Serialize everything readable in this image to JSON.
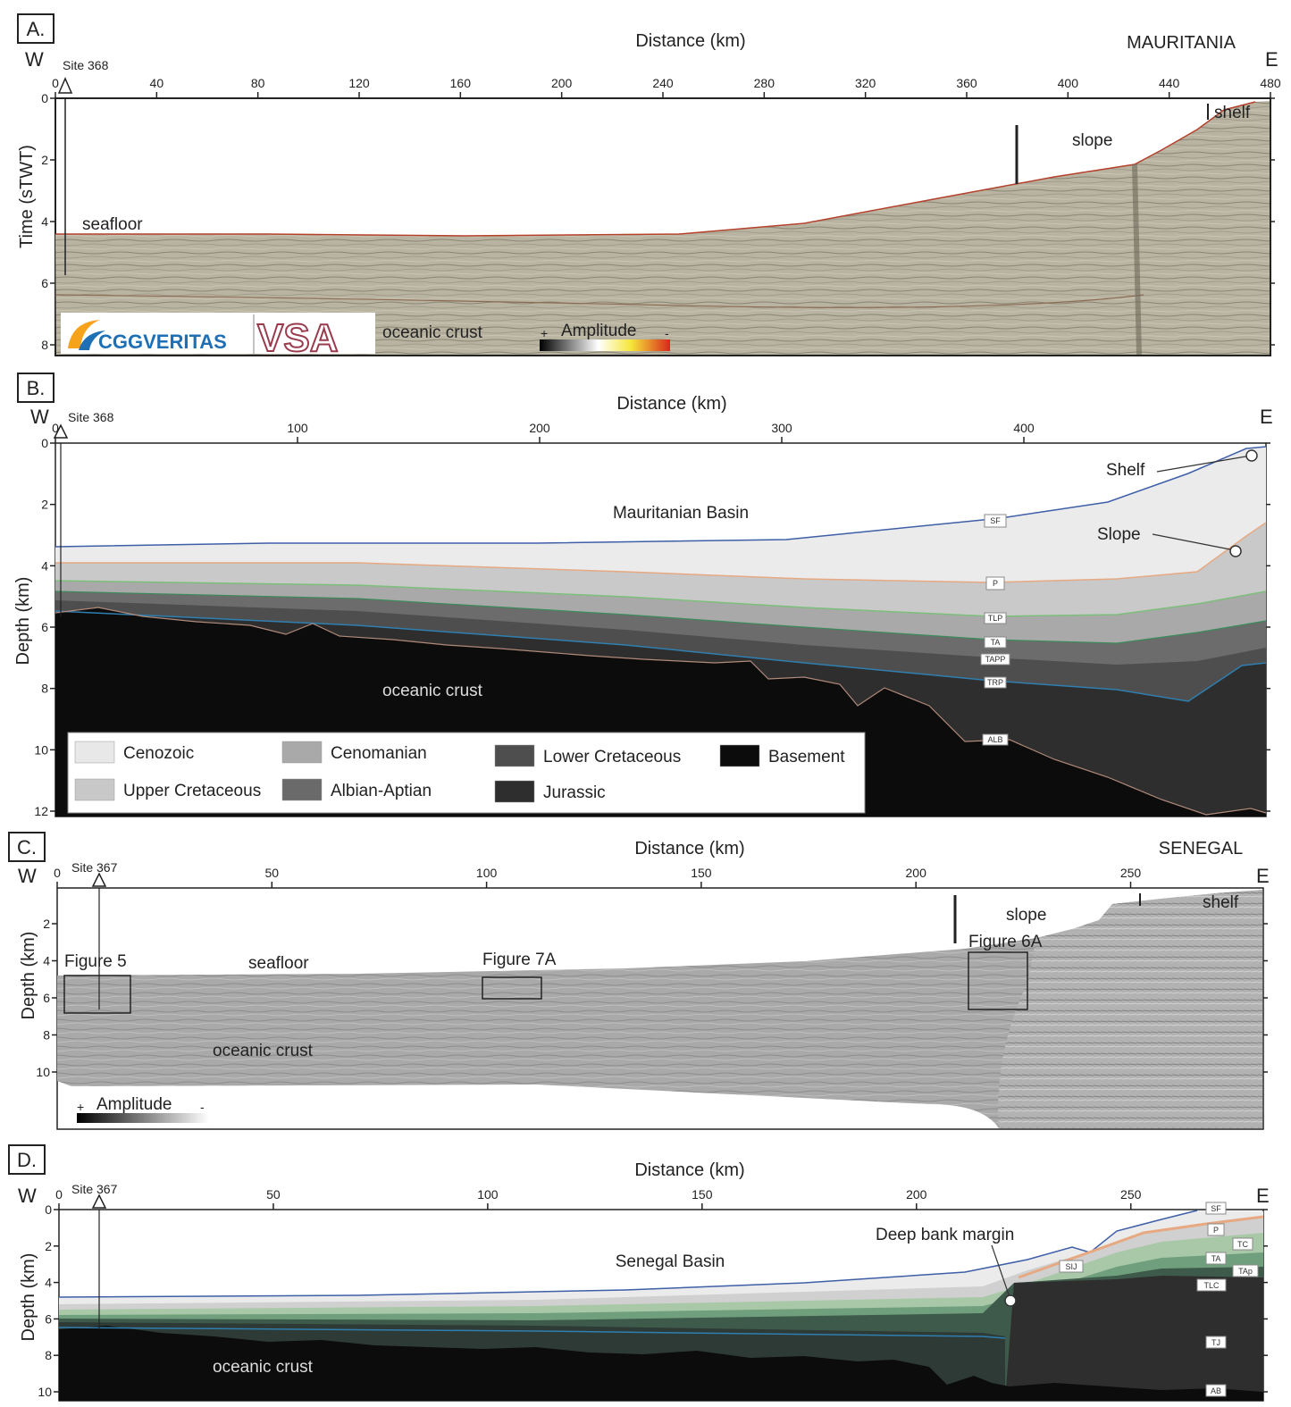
{
  "panels": [
    {
      "letter": "A.",
      "x_title": "Distance (km)",
      "y_title": "Time (sTWT)",
      "region": "MAURITANIA",
      "west": "W",
      "east": "E",
      "site": "Site 368",
      "x_ticks": [
        "0",
        "40",
        "80",
        "120",
        "160",
        "200",
        "240",
        "280",
        "320",
        "360",
        "400",
        "440",
        "480"
      ],
      "y_ticks": [
        "0",
        "2",
        "4",
        "6",
        "8"
      ],
      "labels": {
        "seafloor": "seafloor",
        "slope": "slope",
        "shelf": "shelf",
        "crust": "oceanic crust",
        "amplitude": "Amplitude",
        "plus": "+",
        "minus": "-"
      },
      "logo": {
        "company": "CGGVERITAS",
        "partner": "VSA",
        "brand_colors": [
          "#f7a21b",
          "#1f6fb5"
        ]
      }
    },
    {
      "letter": "B.",
      "x_title": "Distance (km)",
      "y_title": "Depth (km)",
      "west": "W",
      "east": "E",
      "site": "Site 368",
      "x_ticks": [
        "0",
        "100",
        "200",
        "300",
        "400"
      ],
      "y_ticks": [
        "0",
        "2",
        "4",
        "6",
        "8",
        "10",
        "12"
      ],
      "labels": {
        "basin": "Mauritanian Basin",
        "shelf": "Shelf",
        "slope": "Slope",
        "crust": "oceanic crust"
      },
      "horizons": [
        "SF",
        "P",
        "TLP",
        "TA",
        "TAPP",
        "TRP",
        "ALB"
      ],
      "legend": [
        {
          "label": "Cenozoic",
          "color": "#e8e8e8"
        },
        {
          "label": "Cenomanian",
          "color": "#a9a9a9"
        },
        {
          "label": "Lower Cretaceous",
          "color": "#4e4e4e"
        },
        {
          "label": "Basement",
          "color": "#0c0c0c"
        },
        {
          "label": "Upper Cretaceous",
          "color": "#c8c8c8"
        },
        {
          "label": "Albian-Aptian",
          "color": "#6a6a6a"
        },
        {
          "label": "Jurassic",
          "color": "#2e2e2e"
        }
      ]
    },
    {
      "letter": "C.",
      "x_title": "Distance (km)",
      "y_title": "Depth (km)",
      "region": "SENEGAL",
      "west": "W",
      "east": "E",
      "site": "Site 367",
      "x_ticks": [
        "0",
        "50",
        "100",
        "150",
        "200",
        "250"
      ],
      "y_ticks": [
        "2",
        "4",
        "6",
        "8",
        "10"
      ],
      "labels": {
        "seafloor": "seafloor",
        "slope": "slope",
        "shelf": "shelf",
        "crust": "oceanic crust",
        "amplitude": "Amplitude",
        "plus": "+",
        "minus": "-",
        "fig5": "Figure 5",
        "fig7a": "Figure 7A",
        "fig6a": "Figure 6A"
      }
    },
    {
      "letter": "D.",
      "x_title": "Distance (km)",
      "y_title": "Depth (km)",
      "west": "W",
      "east": "E",
      "site": "Site 367",
      "x_ticks": [
        "0",
        "50",
        "100",
        "150",
        "200",
        "250"
      ],
      "y_ticks": [
        "0",
        "2",
        "4",
        "6",
        "8",
        "10"
      ],
      "labels": {
        "basin": "Senegal Basin",
        "margin": "Deep bank margin",
        "crust": "oceanic crust"
      },
      "horizons": [
        "SF",
        "P",
        "TC",
        "TA",
        "TAp",
        "TLC",
        "TJ",
        "AB",
        "SIJ"
      ]
    }
  ]
}
